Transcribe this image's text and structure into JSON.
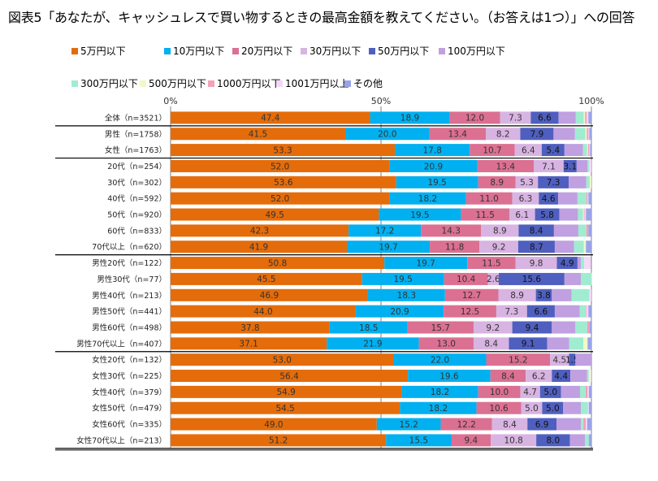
{
  "title": "図表5「あなたが、キャッシュレスで買い物するときの最高金額を教えてください。（お答えは1つ）」への回答",
  "chart_data": {
    "type": "bar",
    "orientation": "horizontal",
    "stacked": "percent",
    "title": "図表5「あなたが、キャッシュレスで買い物するときの最高金額を教えてください。（お答えは1つ）」への回答",
    "xlabel": "",
    "ylabel": "",
    "xlim": [
      0,
      100
    ],
    "x_ticks": [
      "0%",
      "50%",
      "100%"
    ],
    "grid": "vertical line at 50%",
    "legend_position": "top",
    "series_names": [
      "5万円以下",
      "10万円以下",
      "20万円以下",
      "30万円以下",
      "50万円以下",
      "100万円以下",
      "300万円以下",
      "500万円以下",
      "1000万円以下",
      "1001万円以上",
      "その他"
    ],
    "colors": [
      "#e46c0a",
      "#00b0f0",
      "#db7093",
      "#d8b4e2",
      "#4f5fbf",
      "#c0a0e0",
      "#a0ecd0",
      "#f0f8c8",
      "#f4a0b8",
      "#f4d8f8",
      "#9aa4e8"
    ],
    "label_colors": [
      "#333333",
      "#333333",
      "#333333",
      "#333333",
      "#111111",
      "#333333",
      "#333333",
      "#333333",
      "#333333",
      "#333333",
      "#333333"
    ],
    "groups": [
      {
        "name": "total",
        "rows": [
          {
            "label": "全体（n=3521）",
            "values": [
              47.4,
              18.9,
              12.0,
              7.3,
              6.6,
              4.1,
              1.9,
              0.3,
              0.4,
              0.4,
              0.7
            ],
            "shown_labels": [
              true,
              true,
              true,
              true,
              true,
              false,
              false,
              false,
              false,
              false,
              false
            ]
          }
        ]
      },
      {
        "name": "gender",
        "rows": [
          {
            "label": "男性（n=1758）",
            "values": [
              41.5,
              20.0,
              13.4,
              8.2,
              7.9,
              5.1,
              2.5,
              0.3,
              0.4,
              0.2,
              0.5
            ],
            "shown_labels": [
              true,
              true,
              true,
              true,
              true,
              false,
              false,
              false,
              false,
              false,
              false
            ]
          },
          {
            "label": "女性（n=1763）",
            "values": [
              53.3,
              17.8,
              10.7,
              6.4,
              5.4,
              4.4,
              1.0,
              0.2,
              0.3,
              0.2,
              0.3
            ],
            "shown_labels": [
              true,
              true,
              true,
              true,
              true,
              false,
              false,
              false,
              false,
              false,
              false
            ]
          }
        ]
      },
      {
        "name": "age",
        "rows": [
          {
            "label": "20代（n=254）",
            "values": [
              52.0,
              20.9,
              13.4,
              7.1,
              3.1,
              2.6,
              0.4,
              0.0,
              0.0,
              0.5,
              0.0
            ],
            "shown_labels": [
              true,
              true,
              true,
              true,
              true,
              false,
              false,
              false,
              false,
              false,
              false
            ]
          },
          {
            "label": "30代（n=302）",
            "values": [
              53.6,
              19.5,
              8.9,
              5.3,
              7.3,
              4.2,
              0.8,
              0.4,
              0.0,
              0.0,
              0.0
            ],
            "shown_labels": [
              true,
              true,
              true,
              true,
              true,
              false,
              false,
              false,
              false,
              false,
              false
            ]
          },
          {
            "label": "40代（n=592）",
            "values": [
              52.0,
              18.2,
              11.0,
              6.3,
              4.6,
              4.6,
              2.1,
              0.0,
              0.3,
              0.2,
              0.7
            ],
            "shown_labels": [
              true,
              true,
              true,
              true,
              true,
              false,
              false,
              false,
              false,
              false,
              false
            ]
          },
          {
            "label": "50代（n=920）",
            "values": [
              49.5,
              19.5,
              11.5,
              6.1,
              5.8,
              4.4,
              1.2,
              0.2,
              0.2,
              0.3,
              1.3
            ],
            "shown_labels": [
              true,
              true,
              true,
              true,
              true,
              false,
              false,
              false,
              false,
              false,
              false
            ]
          },
          {
            "label": "60代（n=833）",
            "values": [
              42.3,
              17.2,
              14.3,
              8.9,
              8.4,
              5.8,
              1.9,
              0.0,
              0.5,
              0.0,
              0.7
            ],
            "shown_labels": [
              true,
              true,
              true,
              true,
              true,
              false,
              false,
              false,
              false,
              false,
              false
            ]
          },
          {
            "label": "70代以上（n=620）",
            "values": [
              41.9,
              19.7,
              11.8,
              9.2,
              8.7,
              4.6,
              2.3,
              0.5,
              0.0,
              0.0,
              1.3
            ],
            "shown_labels": [
              true,
              true,
              true,
              true,
              true,
              false,
              false,
              false,
              false,
              false,
              false
            ]
          }
        ]
      },
      {
        "name": "male_age",
        "rows": [
          {
            "label": "男性20代（n=122）",
            "values": [
              50.8,
              19.7,
              11.5,
              9.8,
              4.9,
              0.8,
              0.8,
              0.0,
              0.0,
              1.6,
              0.0
            ],
            "shown_labels": [
              true,
              true,
              true,
              true,
              true,
              false,
              false,
              false,
              false,
              false,
              false
            ]
          },
          {
            "label": "男性30代（n=77）",
            "values": [
              45.5,
              19.5,
              10.4,
              2.6,
              15.6,
              3.9,
              2.6,
              0.0,
              0.0,
              0.0,
              0.0
            ],
            "shown_labels": [
              true,
              true,
              true,
              true,
              true,
              false,
              false,
              false,
              false,
              false,
              false
            ]
          },
          {
            "label": "男性40代（n=213）",
            "values": [
              46.9,
              18.3,
              12.7,
              8.9,
              3.8,
              4.7,
              4.2,
              0.0,
              0.0,
              0.5,
              0.0
            ],
            "shown_labels": [
              true,
              true,
              true,
              true,
              true,
              false,
              false,
              false,
              false,
              false,
              false
            ]
          },
          {
            "label": "男性50代（n=441）",
            "values": [
              44.0,
              20.9,
              12.5,
              7.3,
              6.6,
              5.9,
              1.4,
              0.0,
              0.2,
              0.5,
              0.7
            ],
            "shown_labels": [
              true,
              true,
              true,
              true,
              true,
              false,
              false,
              false,
              false,
              false,
              false
            ]
          },
          {
            "label": "男性60代（n=498）",
            "values": [
              37.8,
              18.5,
              15.7,
              9.2,
              9.4,
              5.6,
              2.8,
              0.0,
              0.6,
              0.0,
              0.4
            ],
            "shown_labels": [
              true,
              true,
              true,
              true,
              true,
              false,
              false,
              false,
              false,
              false,
              false
            ]
          },
          {
            "label": "男性70代以上（n=407）",
            "values": [
              37.1,
              21.9,
              13.0,
              8.4,
              9.1,
              5.2,
              3.4,
              1.0,
              0.0,
              0.0,
              0.9
            ],
            "shown_labels": [
              true,
              true,
              true,
              true,
              true,
              false,
              false,
              false,
              false,
              false,
              false
            ]
          }
        ]
      },
      {
        "name": "female_age",
        "rows": [
          {
            "label": "女性20代（n=132）",
            "values": [
              53.0,
              22.0,
              15.2,
              4.5,
              1.5,
              3.8,
              0.0,
              0.0,
              0.0,
              0.0,
              0.0
            ],
            "shown_labels": [
              true,
              true,
              true,
              true,
              true,
              false,
              false,
              false,
              false,
              false,
              false
            ]
          },
          {
            "label": "女性30代（n=225）",
            "values": [
              56.4,
              19.6,
              8.4,
              6.2,
              4.4,
              4.0,
              0.4,
              0.4,
              0.0,
              0.2,
              0.0
            ],
            "shown_labels": [
              true,
              true,
              true,
              true,
              true,
              false,
              false,
              false,
              false,
              false,
              false
            ]
          },
          {
            "label": "女性40代（n=379）",
            "values": [
              54.9,
              18.2,
              10.0,
              4.7,
              5.0,
              4.5,
              1.3,
              0.0,
              0.5,
              0.3,
              0.6
            ],
            "shown_labels": [
              true,
              true,
              true,
              true,
              true,
              false,
              false,
              false,
              false,
              false,
              false
            ]
          },
          {
            "label": "女性50代（n=479）",
            "values": [
              54.5,
              18.2,
              10.6,
              5.0,
              5.0,
              4.2,
              1.7,
              0.0,
              0.0,
              0.2,
              0.6
            ],
            "shown_labels": [
              true,
              true,
              true,
              true,
              true,
              false,
              false,
              false,
              false,
              false,
              false
            ]
          },
          {
            "label": "女性60代（n=335）",
            "values": [
              49.0,
              15.2,
              12.2,
              8.4,
              6.9,
              5.8,
              0.6,
              0.0,
              0.6,
              0.3,
              1.0
            ],
            "shown_labels": [
              true,
              true,
              true,
              true,
              true,
              false,
              false,
              false,
              false,
              false,
              false
            ]
          },
          {
            "label": "女性70代以上（n=213）",
            "values": [
              51.2,
              15.5,
              9.4,
              10.8,
              8.0,
              3.6,
              0.9,
              0.0,
              0.0,
              0.0,
              0.6
            ],
            "shown_labels": [
              true,
              true,
              true,
              true,
              true,
              false,
              false,
              false,
              false,
              false,
              false
            ]
          }
        ]
      }
    ]
  }
}
